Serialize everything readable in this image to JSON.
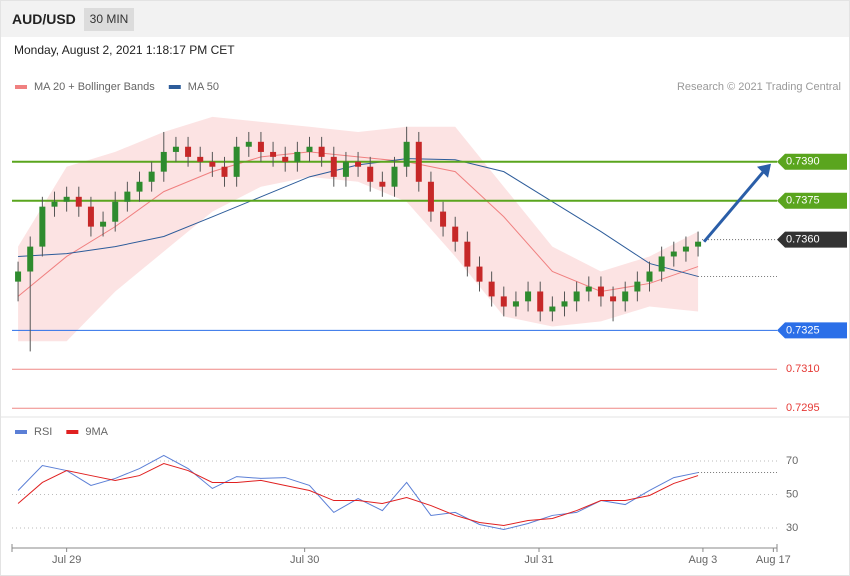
{
  "header": {
    "symbol": "AUD/USD",
    "timeframe": "30 MIN",
    "timestamp": "Monday, August 2, 2021 1:18:17 PM CET"
  },
  "chart_data": [
    {
      "type": "candlestick",
      "credit": "Research © 2021 Trading Central",
      "xlim": [
        -0.5,
        62.5
      ],
      "ylim": [
        0.7292,
        0.7425
      ],
      "up_color": "#2e8b2e",
      "down_color": "#c62828",
      "open": [
        0.73438,
        0.73477,
        0.73573,
        0.73727,
        0.73746,
        0.73765,
        0.73727,
        0.7365,
        0.73669,
        0.73746,
        0.73785,
        0.73823,
        0.73862,
        0.73938,
        0.73958,
        0.73919,
        0.739,
        0.73881,
        0.73842,
        0.73958,
        0.73977,
        0.73938,
        0.73919,
        0.739,
        0.73938,
        0.73958,
        0.73919,
        0.73842,
        0.739,
        0.73881,
        0.73823,
        0.73804,
        0.73881,
        0.73977,
        0.73823,
        0.73708,
        0.7365,
        0.73592,
        0.73496,
        0.73438,
        0.73381,
        0.73342,
        0.73362,
        0.734,
        0.73323,
        0.73342,
        0.73362,
        0.734,
        0.73419,
        0.73381,
        0.73362,
        0.734,
        0.73438,
        0.73477,
        0.73535,
        0.73554,
        0.73573
      ],
      "high": [
        0.73515,
        0.73612,
        0.73765,
        0.73785,
        0.73804,
        0.73804,
        0.73765,
        0.73708,
        0.73785,
        0.73823,
        0.73862,
        0.739,
        0.74015,
        0.73996,
        0.73996,
        0.73958,
        0.73938,
        0.73919,
        0.73996,
        0.74015,
        0.74015,
        0.73977,
        0.73958,
        0.73977,
        0.73996,
        0.73996,
        0.73958,
        0.73938,
        0.73938,
        0.73919,
        0.73862,
        0.73919,
        0.74035,
        0.74015,
        0.73862,
        0.73746,
        0.73688,
        0.73631,
        0.73535,
        0.73477,
        0.73419,
        0.734,
        0.73438,
        0.73438,
        0.73381,
        0.734,
        0.73438,
        0.73458,
        0.73458,
        0.73419,
        0.73438,
        0.73477,
        0.73515,
        0.73573,
        0.73592,
        0.73612,
        0.73631
      ],
      "low": [
        0.73362,
        0.73169,
        0.73535,
        0.73688,
        0.73708,
        0.73688,
        0.73612,
        0.73612,
        0.73631,
        0.73708,
        0.73746,
        0.73785,
        0.73823,
        0.739,
        0.73881,
        0.73862,
        0.73842,
        0.73804,
        0.73804,
        0.73919,
        0.739,
        0.73881,
        0.73862,
        0.73862,
        0.739,
        0.73881,
        0.73804,
        0.73804,
        0.73842,
        0.73785,
        0.73765,
        0.73765,
        0.73842,
        0.73785,
        0.73669,
        0.73612,
        0.73554,
        0.73458,
        0.734,
        0.73342,
        0.73304,
        0.73304,
        0.73323,
        0.73285,
        0.73285,
        0.73304,
        0.73323,
        0.73362,
        0.73342,
        0.73285,
        0.73323,
        0.73362,
        0.734,
        0.73438,
        0.73496,
        0.73515,
        0.73535
      ],
      "close": [
        0.73477,
        0.73573,
        0.73727,
        0.73746,
        0.73765,
        0.73727,
        0.7365,
        0.73669,
        0.73746,
        0.73785,
        0.73823,
        0.73862,
        0.73938,
        0.73958,
        0.73919,
        0.739,
        0.73881,
        0.73842,
        0.73958,
        0.73977,
        0.73938,
        0.73919,
        0.739,
        0.73938,
        0.73958,
        0.73919,
        0.73842,
        0.739,
        0.73881,
        0.73823,
        0.73804,
        0.73881,
        0.73977,
        0.73823,
        0.73708,
        0.7365,
        0.73592,
        0.73496,
        0.73438,
        0.73381,
        0.73342,
        0.73362,
        0.734,
        0.73323,
        0.73342,
        0.73362,
        0.734,
        0.73419,
        0.73381,
        0.73362,
        0.734,
        0.73438,
        0.73477,
        0.73535,
        0.73554,
        0.73573,
        0.73592
      ],
      "overlays": [
        {
          "name": "MA 20 + Bollinger Bands",
          "color": "#f08080",
          "x": [
            0,
            4,
            8,
            12,
            16,
            20,
            24,
            28,
            32,
            36,
            40,
            44,
            48,
            52,
            56
          ],
          "values": [
            0.73381,
            0.73535,
            0.7365,
            0.73785,
            0.73862,
            0.73919,
            0.73938,
            0.73919,
            0.739,
            0.73862,
            0.73688,
            0.73477,
            0.734,
            0.73431,
            0.73496
          ],
          "upper": [
            0.73573,
            0.73881,
            0.73938,
            0.74015,
            0.74073,
            0.74054,
            0.74035,
            0.74015,
            0.74035,
            0.74035,
            0.73804,
            0.73573,
            0.73477,
            0.73535,
            0.73631
          ],
          "lower": [
            0.73208,
            0.73208,
            0.734,
            0.73554,
            0.73708,
            0.73804,
            0.73842,
            0.73823,
            0.73746,
            0.73535,
            0.73304,
            0.73265,
            0.73285,
            0.73342,
            0.73323
          ]
        },
        {
          "name": "MA 50",
          "color": "#2d5c9a",
          "x": [
            0,
            4,
            8,
            12,
            16,
            20,
            24,
            28,
            32,
            36,
            40,
            44,
            48,
            52,
            56
          ],
          "values": [
            0.73535,
            0.73546,
            0.73573,
            0.73612,
            0.73688,
            0.73765,
            0.73842,
            0.73888,
            0.73912,
            0.73908,
            0.73862,
            0.73746,
            0.73631,
            0.73508,
            0.73458
          ]
        }
      ],
      "levels": [
        {
          "value": 0.739,
          "label": "0.7390",
          "color": "#5aa51e",
          "line": "solid",
          "label_box": true
        },
        {
          "value": 0.7375,
          "label": "0.7375",
          "color": "#5aa51e",
          "line": "solid",
          "label_box": true
        },
        {
          "value": 0.736,
          "label": "0.7360",
          "color": "#333333",
          "line": "dotted",
          "label_box": true
        },
        {
          "value": 0.7325,
          "label": "0.7325",
          "color": "#2b6fe8",
          "line": "solid",
          "label_box": true
        },
        {
          "value": 0.731,
          "label": "0.7310",
          "color": "#e53935",
          "line": "solid",
          "label_box": false
        },
        {
          "value": 0.7295,
          "label": "0.7295",
          "color": "#e53935",
          "line": "solid",
          "label_box": false
        }
      ]
    },
    {
      "type": "line",
      "xlim": [
        -0.5,
        62.5
      ],
      "ylim": [
        20,
        90
      ],
      "yticks": [
        30,
        50,
        70
      ],
      "grid": true,
      "xticks": [
        {
          "value": 4,
          "label": "Jul 29"
        },
        {
          "value": 23.6,
          "label": "Jul 30"
        },
        {
          "value": 42.9,
          "label": "Jul 31"
        },
        {
          "value": 56.4,
          "label": "Aug 3"
        },
        {
          "value": 62.2,
          "label": "Aug 17"
        }
      ],
      "x": [
        0,
        2,
        4,
        6,
        8,
        10,
        12,
        14,
        16,
        18,
        20,
        22,
        24,
        26,
        28,
        30,
        32,
        34,
        36,
        38,
        40,
        42,
        44,
        46,
        48,
        50,
        52,
        54,
        56
      ],
      "series": [
        {
          "name": "RSI",
          "color": "#5b7fd6",
          "values": [
            52.4,
            67.3,
            64.3,
            55.4,
            59.6,
            65.5,
            73.3,
            65.5,
            53.6,
            60.7,
            59.6,
            60.1,
            55.4,
            39.3,
            47.6,
            40.4,
            57.2,
            37.5,
            39.3,
            32.1,
            29.1,
            32.7,
            37.5,
            39.3,
            46.4,
            44.0,
            52.4,
            60.1,
            63.1
          ]
        },
        {
          "name": "9MA",
          "color": "#e02020",
          "values": [
            44.6,
            57.2,
            64.3,
            61.3,
            58.4,
            61.3,
            68.5,
            64.3,
            57.2,
            57.2,
            58.4,
            55.4,
            52.4,
            46.4,
            46.4,
            44.6,
            48.2,
            43.4,
            37.5,
            33.3,
            31.5,
            34.5,
            35.7,
            40.4,
            46.4,
            46.4,
            49.4,
            56.6,
            61.3
          ]
        }
      ]
    }
  ]
}
